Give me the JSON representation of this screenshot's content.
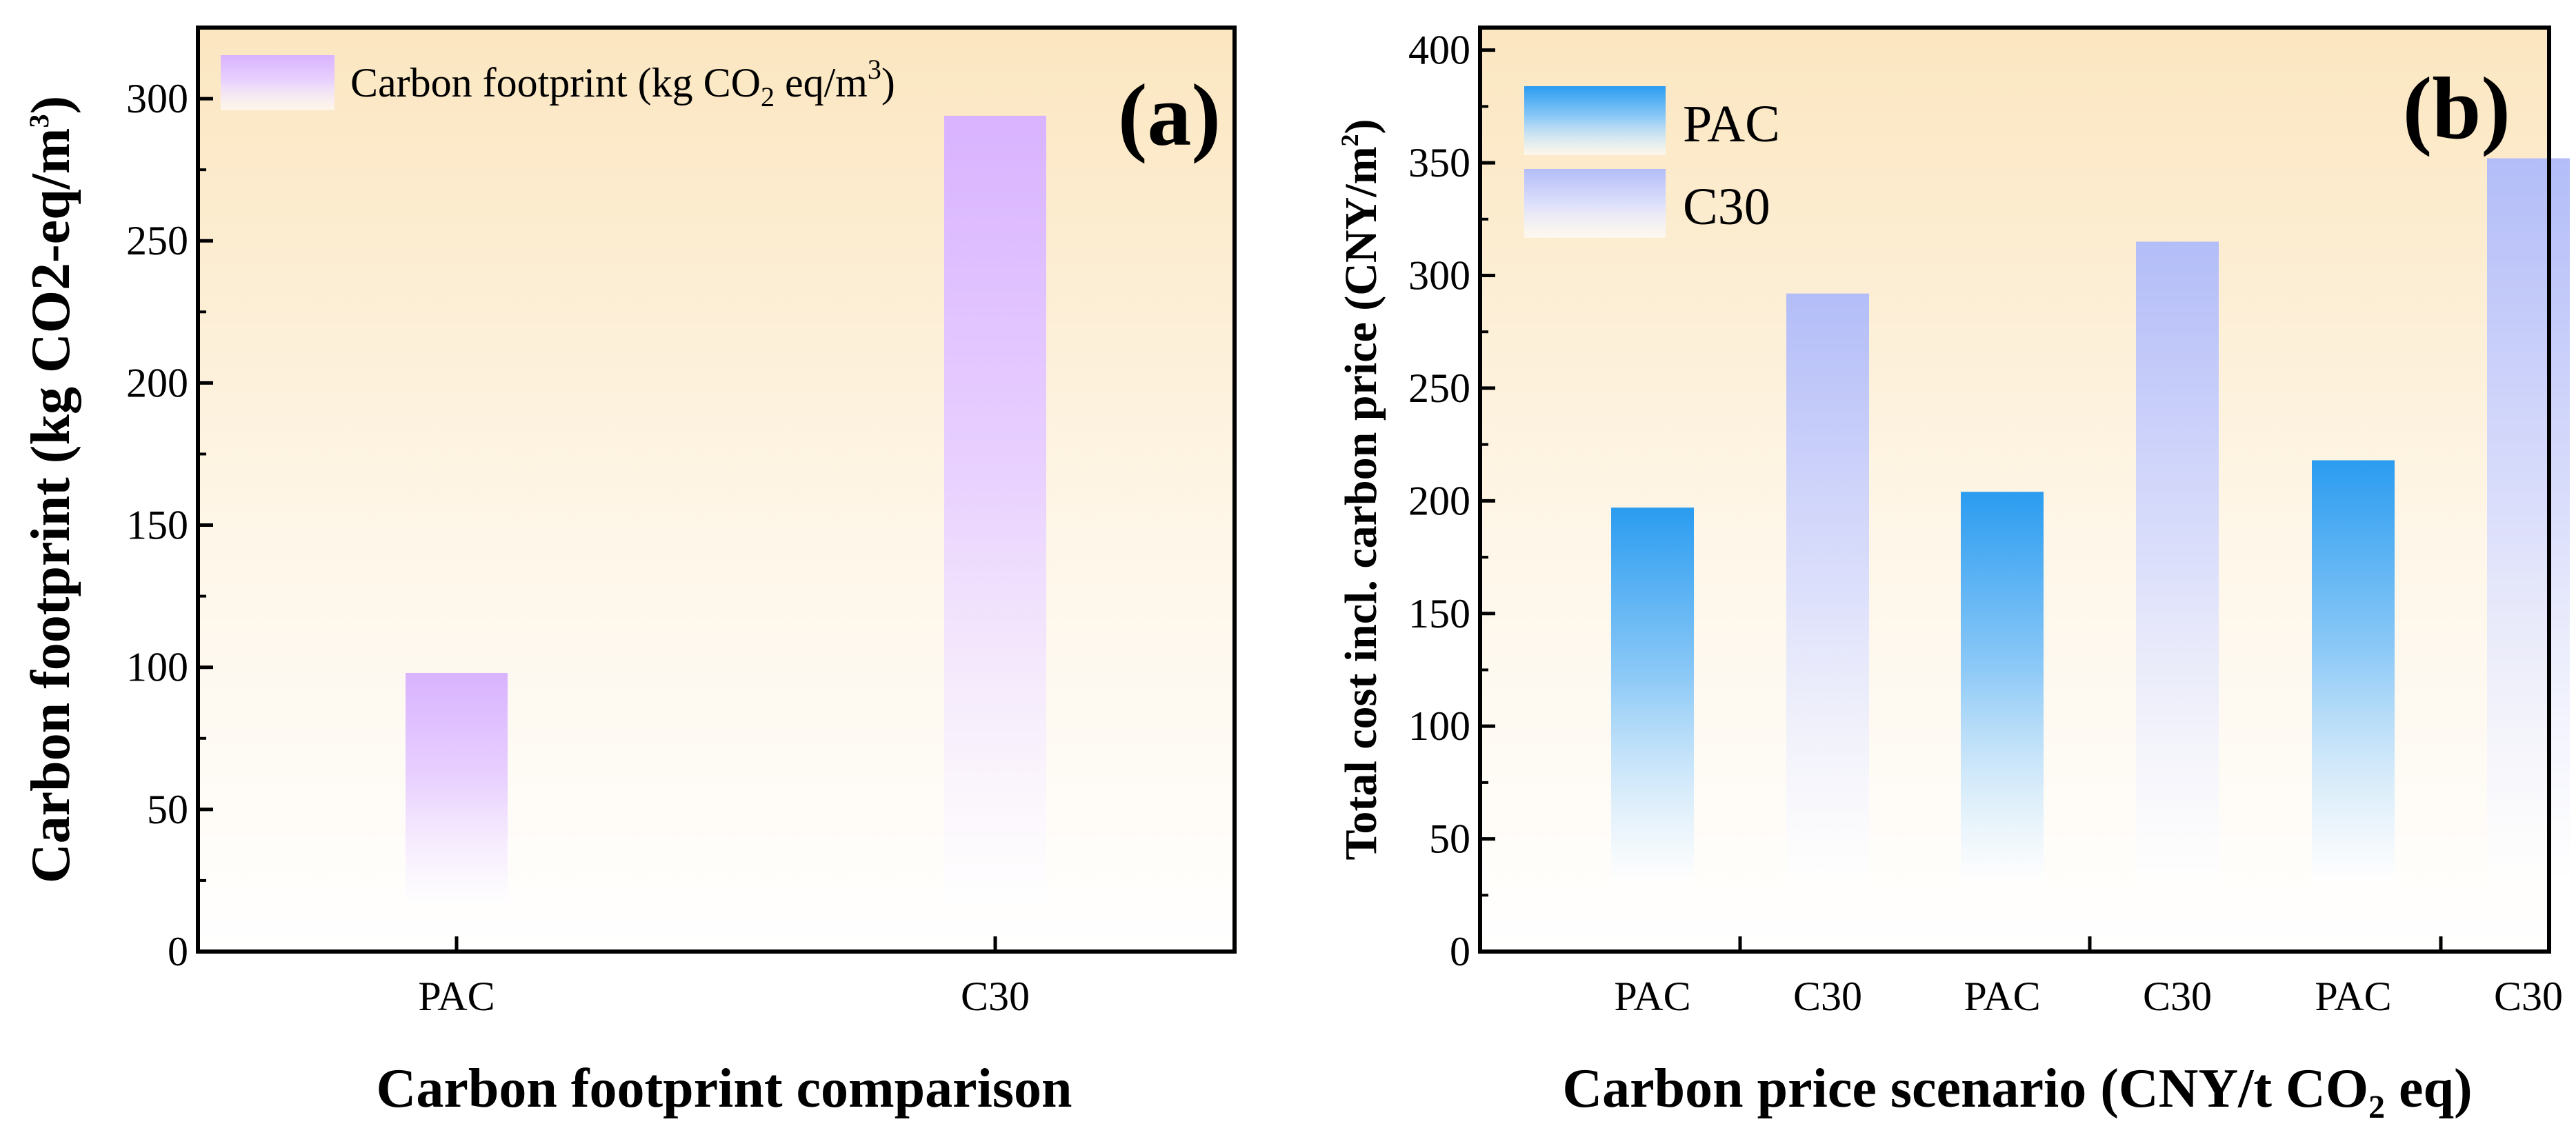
{
  "chart_data": [
    {
      "panel_label": "(a)",
      "type": "bar",
      "categories": [
        "PAC",
        "C30"
      ],
      "series": [
        {
          "name": "Carbon footprint (kg CO2 eq/m3)",
          "values": [
            98,
            294
          ],
          "color": "#d9b3ff"
        }
      ],
      "legend": {
        "label_main": "Carbon footprint (kg CO",
        "label_sub": "2",
        "label_mid": " eq/m",
        "label_sup": "3",
        "label_end": ")",
        "placement": "top-left"
      },
      "xlabel": "Carbon footprint comparison",
      "ylabel": "Carbon footprint (kg CO2-eq/m",
      "ylabel_sup": "3",
      "ylabel_end": ")",
      "ylim": [
        0,
        325
      ],
      "yticks": [
        "0",
        "50",
        "100",
        "150",
        "200",
        "250",
        "300"
      ],
      "background_color": "#fbe8c4"
    },
    {
      "panel_label": "(b)",
      "type": "bar",
      "groups": [
        {
          "categories": [
            "PAC",
            "C30"
          ],
          "values": [
            197,
            292
          ]
        },
        {
          "categories": [
            "PAC",
            "C30"
          ],
          "values": [
            204,
            315
          ]
        },
        {
          "categories": [
            "PAC",
            "C30"
          ],
          "values": [
            218,
            352
          ]
        }
      ],
      "series": [
        {
          "name": "PAC",
          "color": "#2f9ff0"
        },
        {
          "name": "C30",
          "color": "#b3bdf8"
        }
      ],
      "legend": {
        "placement": "top-left"
      },
      "xlabel": "Carbon price scenario (CNY/t CO₂ eq)",
      "ylabel": "Total cost incl. carbon price (CNY/m",
      "ylabel_sup": "2",
      "ylabel_end": ")",
      "ylim": [
        0,
        410
      ],
      "yticks": [
        "0",
        "50",
        "100",
        "150",
        "200",
        "250",
        "300",
        "350",
        "400"
      ],
      "background_color": "#fbe8c4"
    }
  ]
}
